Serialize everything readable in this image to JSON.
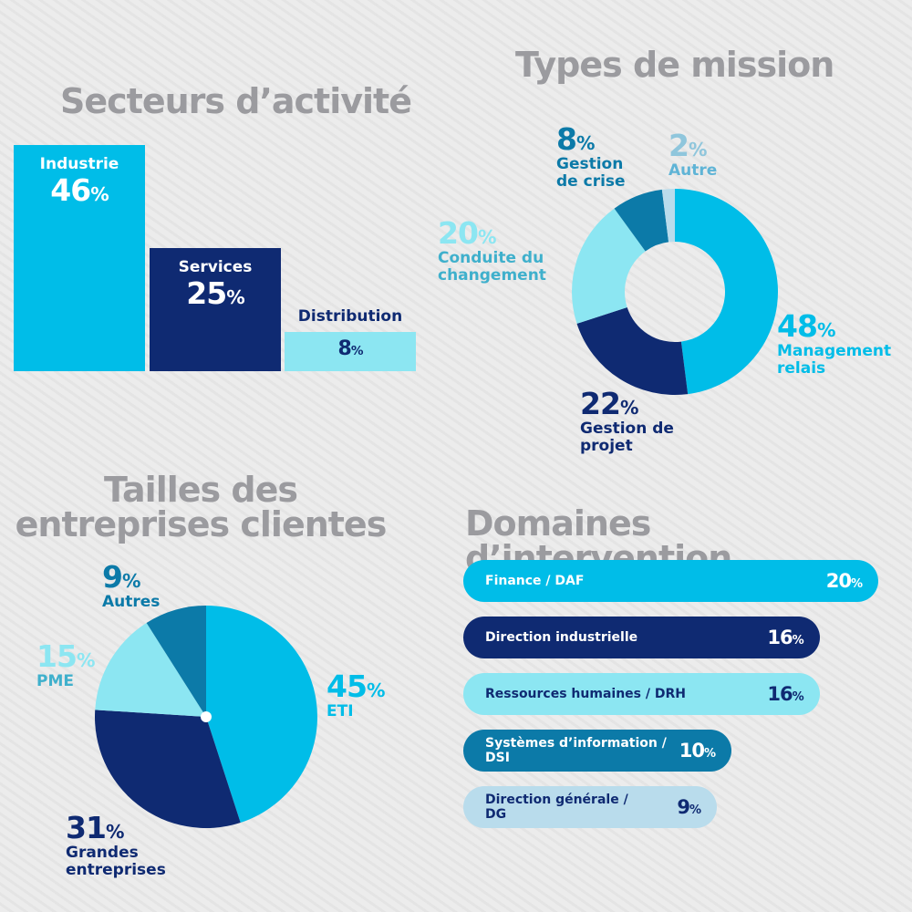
{
  "colors": {
    "title_gray": "#9b9b9f",
    "cyan": "#00bde8",
    "navy": "#0f2a72",
    "light_cyan": "#8ce6f2",
    "teal": "#0c7aa8",
    "pale_blue": "#b9dcec",
    "mid_blue": "#3fb0cc"
  },
  "chart_data": [
    {
      "id": "secteurs",
      "type": "bar",
      "title": "Secteurs d’activité",
      "categories": [
        "Industrie",
        "Services",
        "Distribution"
      ],
      "values": [
        46,
        25,
        8
      ],
      "value_labels": [
        "46%",
        "25%",
        "8%"
      ],
      "colors": [
        "#00bde8",
        "#0f2a72",
        "#8ce6f2"
      ]
    },
    {
      "id": "types-mission",
      "type": "pie",
      "variant": "donut",
      "title": "Types de mission",
      "slices": [
        {
          "label": "Management relais",
          "value": 48,
          "value_label": "48%",
          "color": "#00bde8"
        },
        {
          "label": "Gestion de projet",
          "value": 22,
          "value_label": "22%",
          "color": "#0f2a72"
        },
        {
          "label": "Conduite du changement",
          "value": 20,
          "value_label": "20%",
          "color": "#8ce6f2"
        },
        {
          "label": "Gestion de crise",
          "value": 8,
          "value_label": "8%",
          "color": "#0c7aa8"
        },
        {
          "label": "Autre",
          "value": 2,
          "value_label": "2%",
          "color": "#b9dcec"
        }
      ]
    },
    {
      "id": "tailles",
      "type": "pie",
      "title": "Tailles des entreprises clientes",
      "title_lines": [
        "Tailles des",
        "entreprises clientes"
      ],
      "slices": [
        {
          "label": "ETI",
          "value": 45,
          "value_label": "45%",
          "color": "#00bde8"
        },
        {
          "label": "Grandes entreprises",
          "value": 31,
          "value_label": "31%",
          "color": "#0f2a72"
        },
        {
          "label": "PME",
          "value": 15,
          "value_label": "15%",
          "color": "#8ce6f2"
        },
        {
          "label": "Autres",
          "value": 9,
          "value_label": "9%",
          "color": "#0c7aa8"
        }
      ]
    },
    {
      "id": "domaines",
      "type": "bar",
      "orientation": "horizontal",
      "title": "Domaines d’intervention",
      "categories": [
        "Finance / DAF",
        "Direction industrielle",
        "Ressources humaines / DRH",
        "Systèmes d’information / DSI",
        "Direction générale / DG"
      ],
      "category_lines": [
        [
          "Finance / DAF"
        ],
        [
          "Direction industrielle"
        ],
        [
          "Ressources humaines / DRH"
        ],
        [
          "Systèmes d’information /",
          "DSI"
        ],
        [
          "Direction générale /",
          "DG"
        ]
      ],
      "values": [
        20,
        16,
        16,
        10,
        9
      ],
      "value_labels": [
        "20%",
        "16%",
        "16%",
        "10%",
        "9%"
      ],
      "colors": [
        "#00bde8",
        "#0f2a72",
        "#8ce6f2",
        "#0c7aa8",
        "#b9dcec"
      ],
      "text_colors": [
        "#ffffff",
        "#ffffff",
        "#0f2a72",
        "#ffffff",
        "#0f2a72"
      ]
    }
  ]
}
